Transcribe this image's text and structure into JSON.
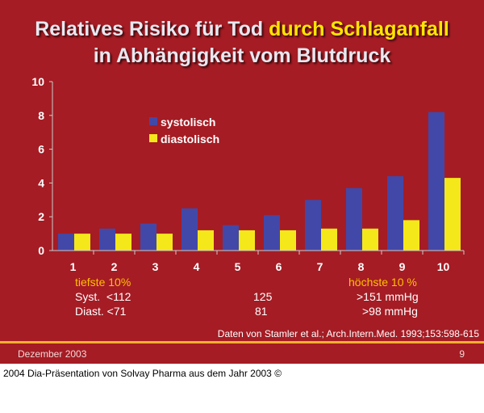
{
  "title": {
    "line1_a": "Relatives Risiko für Tod ",
    "line1_b": "durch Schlaganfall",
    "line2": "in Abhängigkeit vom Blutdruck"
  },
  "colors": {
    "background": "#a51c24",
    "systolisch": "#4248a8",
    "diastolisch": "#f5e81a",
    "highlight": "#ffe600"
  },
  "chart_data": {
    "type": "bar",
    "categories": [
      "1",
      "2",
      "3",
      "4",
      "5",
      "6",
      "7",
      "8",
      "9",
      "10"
    ],
    "series": [
      {
        "name": "systolisch",
        "values": [
          1.0,
          1.3,
          1.6,
          2.5,
          1.5,
          2.1,
          3.0,
          3.7,
          4.4,
          8.2
        ]
      },
      {
        "name": "diastolisch",
        "values": [
          1.0,
          1.0,
          1.0,
          1.2,
          1.2,
          1.2,
          1.3,
          1.3,
          1.8,
          4.3
        ]
      }
    ],
    "ylim": [
      0,
      10
    ],
    "yticks": [
      "0",
      "2",
      "4",
      "6",
      "8",
      "10"
    ],
    "legend": "top-center",
    "grid": false
  },
  "annotations": {
    "low": "tiefste 10%",
    "high": "höchste 10 %",
    "syst_low": "Syst.  <112",
    "syst_mid": "125",
    "syst_high": ">151 mmHg",
    "diast_low": "Diast. <71",
    "diast_mid": "81",
    "diast_high": ">98 mmHg",
    "source": "Daten von Stamler et al.; Arch.Intern.Med. 1993;153:598-615"
  },
  "footer": {
    "date": "Dezember 2003",
    "page": "9"
  },
  "caption": "2004 Dia-Präsentation von Solvay Pharma aus dem Jahr 2003 ©"
}
